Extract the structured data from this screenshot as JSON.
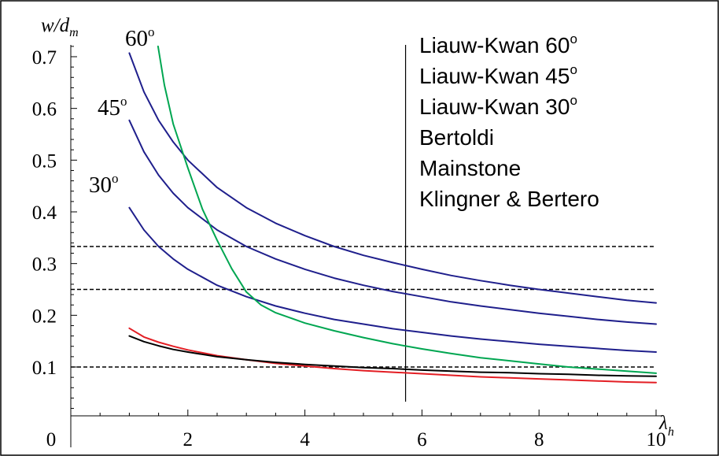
{
  "chart_data": {
    "type": "line",
    "xlabel": "λ",
    "xlabel_subscript": "h",
    "ylabel_main": "w/d",
    "ylabel_subscript": "m",
    "xlim": [
      0,
      10
    ],
    "ylim": [
      0,
      0.72
    ],
    "x_ticks": [
      0,
      2,
      4,
      6,
      8,
      10
    ],
    "x_tick_labels": [
      "0",
      "2",
      "4",
      "6",
      "8",
      "10"
    ],
    "y_ticks": [
      0.1,
      0.2,
      0.3,
      0.4,
      0.5,
      0.6,
      0.7
    ],
    "y_tick_labels": [
      "0.1",
      "0.2",
      "0.3",
      "0.4",
      "0.5",
      "0.6",
      "0.7"
    ],
    "reference_lines": [
      0.1,
      0.25,
      0.333
    ],
    "vertical_line_x": 5.72,
    "curve_labels": [
      {
        "text": "60",
        "sup": "o"
      },
      {
        "text": "45",
        "sup": "o"
      },
      {
        "text": "30",
        "sup": "o"
      }
    ],
    "legend": [
      {
        "text": "Liauw-Kwan 60",
        "sup": "o"
      },
      {
        "text": "Liauw-Kwan 45",
        "sup": "o"
      },
      {
        "text": "Liauw-Kwan 30",
        "sup": "o"
      },
      {
        "text": "Bertoldi",
        "sup": ""
      },
      {
        "text": "Mainstone",
        "sup": ""
      },
      {
        "text": "Klingner & Bertero",
        "sup": ""
      }
    ],
    "colors": {
      "liauw_kwan": "#1f1f8c",
      "bertoldi": "#00a651",
      "mainstone": "#e31e24",
      "klingner_bertero": "#000000",
      "axes": "#000000",
      "frame": "#000000"
    },
    "series": [
      {
        "key": "lk60",
        "x": [
          1,
          1.25,
          1.5,
          1.75,
          2,
          2.5,
          3,
          3.5,
          4,
          4.5,
          5,
          5.5,
          6,
          6.5,
          7,
          7.5,
          8,
          8.5,
          9,
          9.5,
          10
        ],
        "y": [
          0.707,
          0.632,
          0.577,
          0.535,
          0.5,
          0.447,
          0.408,
          0.378,
          0.354,
          0.333,
          0.316,
          0.302,
          0.289,
          0.277,
          0.267,
          0.258,
          0.25,
          0.243,
          0.236,
          0.229,
          0.224
        ]
      },
      {
        "key": "lk45",
        "x": [
          1,
          1.25,
          1.5,
          1.75,
          2,
          2.5,
          3,
          3.5,
          4,
          4.5,
          5,
          5.5,
          6,
          6.5,
          7,
          7.5,
          8,
          8.5,
          9,
          9.5,
          10
        ],
        "y": [
          0.577,
          0.516,
          0.471,
          0.436,
          0.408,
          0.365,
          0.333,
          0.309,
          0.289,
          0.272,
          0.258,
          0.246,
          0.236,
          0.226,
          0.218,
          0.211,
          0.204,
          0.198,
          0.192,
          0.187,
          0.183
        ]
      },
      {
        "key": "lk30",
        "x": [
          1,
          1.25,
          1.5,
          1.75,
          2,
          2.5,
          3,
          3.5,
          4,
          4.5,
          5,
          5.5,
          6,
          6.5,
          7,
          7.5,
          8,
          8.5,
          9,
          9.5,
          10
        ],
        "y": [
          0.408,
          0.365,
          0.333,
          0.309,
          0.289,
          0.258,
          0.236,
          0.218,
          0.204,
          0.192,
          0.183,
          0.174,
          0.167,
          0.16,
          0.154,
          0.149,
          0.144,
          0.14,
          0.136,
          0.132,
          0.129
        ]
      },
      {
        "key": "bertoldi",
        "x": [
          1.49,
          1.6,
          1.75,
          2,
          2.25,
          2.5,
          2.75,
          3,
          3.25,
          3.5,
          4,
          4.5,
          5,
          5.5,
          6,
          6.5,
          7,
          7.5,
          8,
          8.5,
          9,
          9.5,
          10
        ],
        "y": [
          0.72,
          0.645,
          0.57,
          0.485,
          0.405,
          0.345,
          0.29,
          0.245,
          0.22,
          0.205,
          0.185,
          0.17,
          0.157,
          0.145,
          0.135,
          0.126,
          0.118,
          0.112,
          0.106,
          0.1,
          0.096,
          0.092,
          0.088
        ]
      },
      {
        "key": "mainstone",
        "x": [
          1,
          1.25,
          1.5,
          1.75,
          2,
          2.5,
          3,
          3.5,
          4,
          4.5,
          5,
          5.5,
          6,
          6.5,
          7,
          7.5,
          8,
          8.5,
          9,
          9.5,
          10
        ],
        "y": [
          0.175,
          0.158,
          0.148,
          0.14,
          0.133,
          0.122,
          0.114,
          0.107,
          0.102,
          0.097,
          0.093,
          0.09,
          0.087,
          0.084,
          0.081,
          0.079,
          0.077,
          0.075,
          0.073,
          0.071,
          0.07
        ]
      },
      {
        "key": "klingner_bertero",
        "x": [
          1,
          1.25,
          1.5,
          1.75,
          2,
          2.5,
          3,
          3.5,
          4,
          4.5,
          5,
          5.5,
          6,
          6.5,
          7,
          7.5,
          8,
          8.5,
          9,
          9.5,
          10
        ],
        "y": [
          0.16,
          0.149,
          0.141,
          0.134,
          0.129,
          0.12,
          0.114,
          0.109,
          0.105,
          0.102,
          0.099,
          0.097,
          0.094,
          0.092,
          0.09,
          0.089,
          0.087,
          0.086,
          0.084,
          0.083,
          0.082
        ]
      }
    ]
  }
}
